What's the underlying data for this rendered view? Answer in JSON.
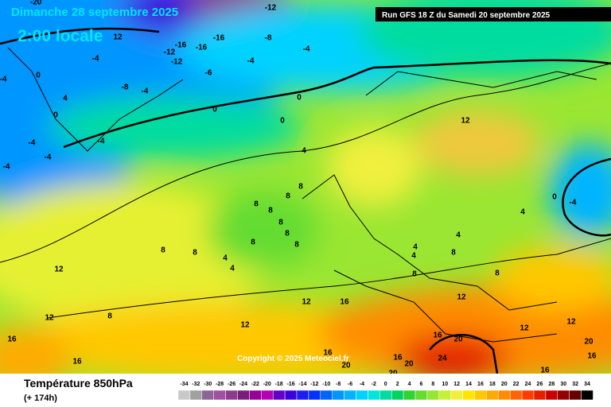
{
  "header": {
    "title": "Dimanche 28 septembre 2025",
    "time": "2:00 locale",
    "run": "Run GFS 18 Z du Samedi 20 septembre 2025"
  },
  "map": {
    "copyright": "Copyright © 2025 Meteociel.fr",
    "contour_labels": [
      -20,
      -12,
      12,
      -16,
      -16,
      -8,
      -12,
      -12,
      -16,
      -4,
      -4,
      -4,
      -6,
      0,
      -8,
      -4,
      -4,
      0,
      0,
      0,
      0,
      4,
      -4,
      -4,
      -4,
      -4,
      4,
      12,
      8,
      8,
      8,
      8,
      8,
      8,
      8,
      8,
      8,
      8,
      4,
      4,
      12,
      12,
      16,
      12,
      12,
      8,
      16,
      16,
      12,
      12,
      12,
      16,
      20,
      24,
      20,
      20,
      20,
      16,
      16,
      20,
      16,
      16,
      0,
      -4,
      4,
      4,
      4,
      8,
      8,
      8,
      4
    ]
  },
  "legend": {
    "title": "Température 850hPa",
    "lead": "(+ 174h)",
    "scale": [
      -34,
      -32,
      -30,
      -28,
      -26,
      -24,
      -22,
      -20,
      -18,
      -16,
      -14,
      -12,
      -10,
      -8,
      -6,
      -4,
      -2,
      0,
      2,
      4,
      6,
      8,
      10,
      12,
      14,
      16,
      18,
      20,
      22,
      24,
      26,
      28,
      30,
      32,
      34
    ],
    "colors": [
      "#c8c8c8",
      "#a0a0a0",
      "#8c6496",
      "#a050a0",
      "#8c3c8c",
      "#781e78",
      "#960096",
      "#b400b4",
      "#6400c8",
      "#3c00dc",
      "#1e1ef0",
      "#0032ff",
      "#0064ff",
      "#0096ff",
      "#00b4ff",
      "#00d2ff",
      "#00e6dc",
      "#00dca0",
      "#00d264",
      "#32d232",
      "#64dc32",
      "#96e632",
      "#c8f032",
      "#f0f03c",
      "#ffe600",
      "#ffc800",
      "#ffaa00",
      "#ff8c00",
      "#ff6400",
      "#ff3c00",
      "#e61e00",
      "#c80000",
      "#960000",
      "#640000",
      "#000000"
    ]
  }
}
